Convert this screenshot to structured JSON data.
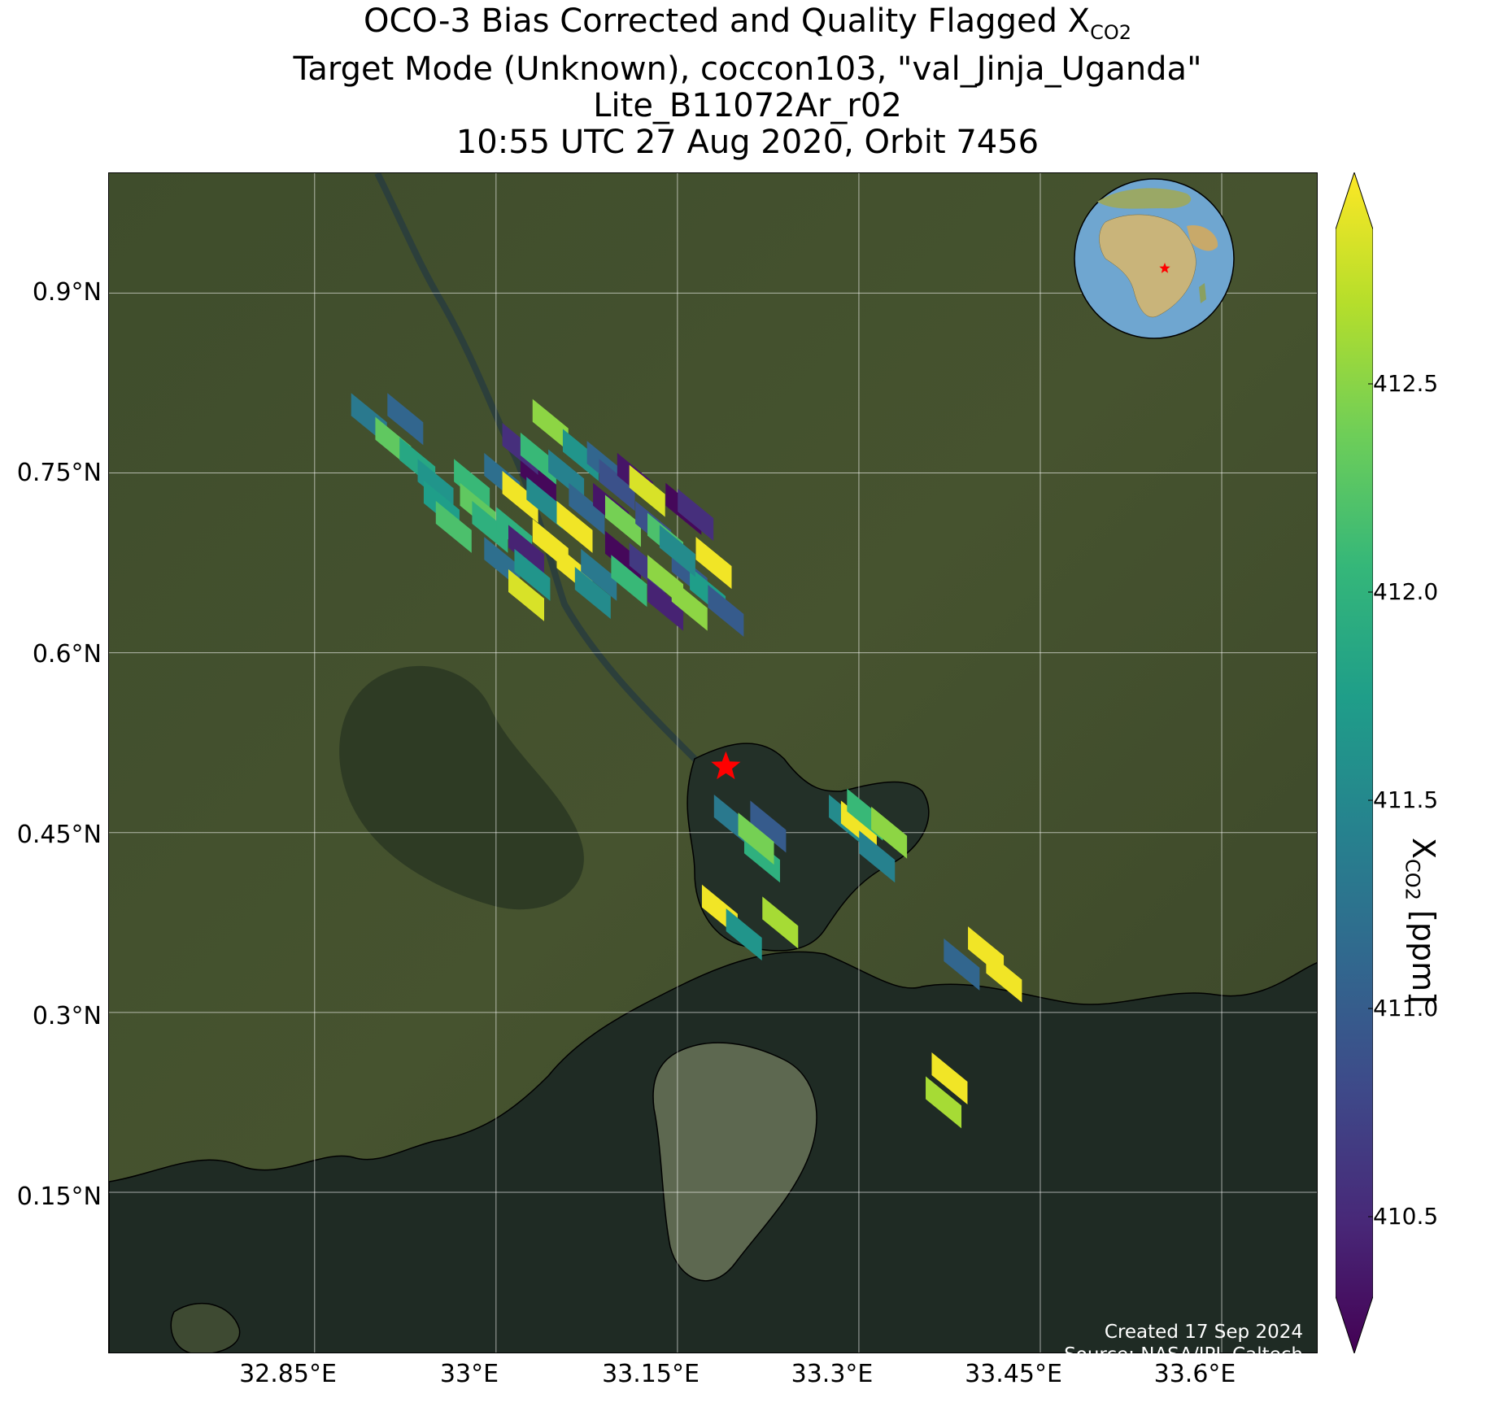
{
  "title": {
    "line1_prefix": "OCO-3 Bias Corrected and Quality Flagged X",
    "line1_sub": "CO2",
    "line2": "Target Mode (Unknown), coccon103, \"val_Jinja_Uganda\"",
    "line3": "Lite_B11072Ar_r02",
    "line4": "10:55 UTC 27 Aug 2020, Orbit 7456"
  },
  "colors": {
    "land_base": "#3c4a2a",
    "lake": "#1f2b24",
    "coastline": "#000000",
    "gridline": "#ffffff",
    "target_marker": "#ff0000",
    "credit_text": "#ffffff",
    "viridis": [
      "#440154",
      "#482878",
      "#3e4989",
      "#31688e",
      "#26828e",
      "#1f9e89",
      "#35b779",
      "#6ece58",
      "#b5de2b",
      "#fde725"
    ]
  },
  "axes": {
    "lon_ticks": [
      "32.85°E",
      "33°E",
      "33.15°E",
      "33.3°E",
      "33.45°E",
      "33.6°E"
    ],
    "lat_ticks": [
      "0.9°N",
      "0.75°N",
      "0.6°N",
      "0.45°N",
      "0.3°N",
      "0.15°N"
    ]
  },
  "colorbar": {
    "label_prefix": "X",
    "label_sub": "CO2",
    "label_suffix": " [ppm]",
    "ticks": [
      "412.5",
      "412.0",
      "411.5",
      "411.0",
      "410.5"
    ],
    "range": [
      410.25,
      412.85
    ]
  },
  "credits": {
    "line1": "Created 17 Sep 2024",
    "line2": "Source: NASA/JPL-Caltech"
  },
  "map_extent": {
    "lon": [
      32.68,
      33.68
    ],
    "lat": [
      0.015,
      1.0
    ]
  },
  "target_location": {
    "lon": 33.19,
    "lat": 0.505
  },
  "soundings": [
    {
      "lon": 32.895,
      "lat": 0.795,
      "xco2": 411.3
    },
    {
      "lon": 32.925,
      "lat": 0.795,
      "xco2": 411.1
    },
    {
      "lon": 32.915,
      "lat": 0.775,
      "xco2": 412.2
    },
    {
      "lon": 32.935,
      "lat": 0.758,
      "xco2": 411.8
    },
    {
      "lon": 32.95,
      "lat": 0.74,
      "xco2": 411.6
    },
    {
      "lon": 32.98,
      "lat": 0.74,
      "xco2": 412.0
    },
    {
      "lon": 32.985,
      "lat": 0.72,
      "xco2": 412.2
    },
    {
      "lon": 32.955,
      "lat": 0.722,
      "xco2": 411.7
    },
    {
      "lon": 32.965,
      "lat": 0.705,
      "xco2": 412.1
    },
    {
      "lon": 32.995,
      "lat": 0.705,
      "xco2": 411.9
    },
    {
      "lon": 33.005,
      "lat": 0.745,
      "xco2": 411.2
    },
    {
      "lon": 33.02,
      "lat": 0.73,
      "xco2": 412.8
    },
    {
      "lon": 33.035,
      "lat": 0.745,
      "xco2": 410.3
    },
    {
      "lon": 33.04,
      "lat": 0.725,
      "xco2": 411.5
    },
    {
      "lon": 33.02,
      "lat": 0.77,
      "xco2": 410.6
    },
    {
      "lon": 33.045,
      "lat": 0.79,
      "xco2": 412.4
    },
    {
      "lon": 33.035,
      "lat": 0.762,
      "xco2": 412.0
    },
    {
      "lon": 33.058,
      "lat": 0.748,
      "xco2": 411.4
    },
    {
      "lon": 33.07,
      "lat": 0.765,
      "xco2": 411.6
    },
    {
      "lon": 33.09,
      "lat": 0.755,
      "xco2": 411.1
    },
    {
      "lon": 33.1,
      "lat": 0.74,
      "xco2": 410.9
    },
    {
      "lon": 33.115,
      "lat": 0.745,
      "xco2": 410.4
    },
    {
      "lon": 33.125,
      "lat": 0.735,
      "xco2": 412.7
    },
    {
      "lon": 33.155,
      "lat": 0.72,
      "xco2": 410.3
    },
    {
      "lon": 33.165,
      "lat": 0.715,
      "xco2": 410.6
    },
    {
      "lon": 33.045,
      "lat": 0.69,
      "xco2": 412.8
    },
    {
      "lon": 33.015,
      "lat": 0.7,
      "xco2": 411.9
    },
    {
      "lon": 33.025,
      "lat": 0.685,
      "xco2": 410.5
    },
    {
      "lon": 33.005,
      "lat": 0.675,
      "xco2": 411.2
    },
    {
      "lon": 33.03,
      "lat": 0.665,
      "xco2": 411.6
    },
    {
      "lon": 33.025,
      "lat": 0.648,
      "xco2": 412.7
    },
    {
      "lon": 33.065,
      "lat": 0.705,
      "xco2": 412.8
    },
    {
      "lon": 33.075,
      "lat": 0.72,
      "xco2": 411.1
    },
    {
      "lon": 33.095,
      "lat": 0.72,
      "xco2": 410.4
    },
    {
      "lon": 33.105,
      "lat": 0.71,
      "xco2": 412.3
    },
    {
      "lon": 33.13,
      "lat": 0.705,
      "xco2": 410.9
    },
    {
      "lon": 33.14,
      "lat": 0.695,
      "xco2": 412.1
    },
    {
      "lon": 33.065,
      "lat": 0.668,
      "xco2": 412.8
    },
    {
      "lon": 33.085,
      "lat": 0.665,
      "xco2": 411.3
    },
    {
      "lon": 33.08,
      "lat": 0.65,
      "xco2": 411.5
    },
    {
      "lon": 33.105,
      "lat": 0.68,
      "xco2": 410.3
    },
    {
      "lon": 33.11,
      "lat": 0.66,
      "xco2": 412.0
    },
    {
      "lon": 33.125,
      "lat": 0.67,
      "xco2": 410.7
    },
    {
      "lon": 33.14,
      "lat": 0.66,
      "xco2": 412.4
    },
    {
      "lon": 33.14,
      "lat": 0.64,
      "xco2": 410.5
    },
    {
      "lon": 33.16,
      "lat": 0.665,
      "xco2": 411.0
    },
    {
      "lon": 33.16,
      "lat": 0.64,
      "xco2": 412.4
    },
    {
      "lon": 33.175,
      "lat": 0.65,
      "xco2": 411.7
    },
    {
      "lon": 33.19,
      "lat": 0.635,
      "xco2": 411.0
    },
    {
      "lon": 33.18,
      "lat": 0.675,
      "xco2": 412.8
    },
    {
      "lon": 33.15,
      "lat": 0.685,
      "xco2": 411.5
    },
    {
      "lon": 33.195,
      "lat": 0.46,
      "xco2": 411.3
    },
    {
      "lon": 33.225,
      "lat": 0.455,
      "xco2": 411.0
    },
    {
      "lon": 33.22,
      "lat": 0.43,
      "xco2": 411.9
    },
    {
      "lon": 33.215,
      "lat": 0.445,
      "xco2": 412.3
    },
    {
      "lon": 33.29,
      "lat": 0.46,
      "xco2": 411.5
    },
    {
      "lon": 33.3,
      "lat": 0.455,
      "xco2": 412.8
    },
    {
      "lon": 33.305,
      "lat": 0.465,
      "xco2": 412.0
    },
    {
      "lon": 33.315,
      "lat": 0.43,
      "xco2": 411.4
    },
    {
      "lon": 33.325,
      "lat": 0.45,
      "xco2": 412.4
    },
    {
      "lon": 33.185,
      "lat": 0.385,
      "xco2": 412.8
    },
    {
      "lon": 33.205,
      "lat": 0.365,
      "xco2": 411.6
    },
    {
      "lon": 33.235,
      "lat": 0.375,
      "xco2": 412.5
    },
    {
      "lon": 33.385,
      "lat": 0.34,
      "xco2": 411.1
    },
    {
      "lon": 33.405,
      "lat": 0.35,
      "xco2": 412.8
    },
    {
      "lon": 33.42,
      "lat": 0.33,
      "xco2": 412.8
    },
    {
      "lon": 33.375,
      "lat": 0.245,
      "xco2": 412.8
    },
    {
      "lon": 33.37,
      "lat": 0.225,
      "xco2": 412.5
    }
  ]
}
